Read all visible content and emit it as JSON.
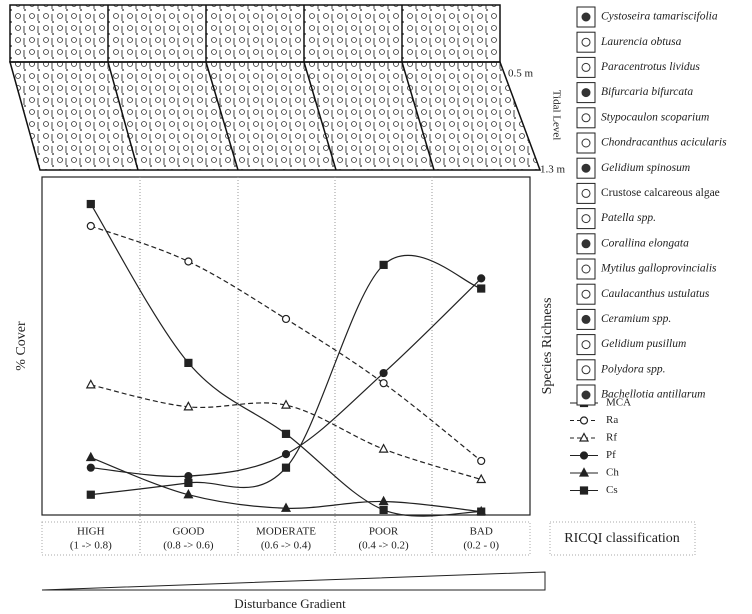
{
  "chart_data": {
    "type": "line",
    "categories": [
      "HIGH",
      "GOOD",
      "MODERATE",
      "POOR",
      "BAD"
    ],
    "category_ranges": [
      "(1 -> 0.8)",
      "(0.8 -> 0.6)",
      "(0.6 -> 0.4)",
      "(0.4 -> 0.2)",
      "(0.2 - 0)"
    ],
    "ylim": [
      0,
      100
    ],
    "y_label": "% Cover",
    "y2_label": "Species Richness",
    "x_label": "Disturbance Gradient",
    "classification_label": "RICQI classification",
    "tidal_label": "Tidal Level",
    "tidal_marks": [
      "0.5 m",
      "1.3 m"
    ],
    "series": [
      {
        "name": "MCA",
        "color": "#222",
        "marker": "square",
        "dashed": false,
        "values": [
          92,
          45,
          24,
          1.5,
          1
        ]
      },
      {
        "name": "Ra",
        "color": "#222",
        "marker": "open-circle",
        "dashed": true,
        "values": [
          85.5,
          75,
          58,
          39,
          16
        ]
      },
      {
        "name": "Rf",
        "color": "#222",
        "marker": "open-triangle",
        "dashed": true,
        "values": [
          38.5,
          32,
          32.5,
          19.5,
          10.5
        ]
      },
      {
        "name": "Pf",
        "color": "#222",
        "marker": "circle",
        "dashed": false,
        "values": [
          14,
          11.5,
          18,
          42,
          70
        ]
      },
      {
        "name": "Ch",
        "color": "#222",
        "marker": "triangle",
        "dashed": false,
        "values": [
          17,
          6,
          2,
          4,
          1
        ]
      },
      {
        "name": "Cs",
        "color": "#222",
        "marker": "square",
        "dashed": false,
        "values": [
          6,
          9.5,
          14,
          74,
          67
        ]
      }
    ],
    "species": [
      "Cystoseira tamariscifolia",
      "Laurencia obtusa",
      "Paracentrotus lividus",
      "Bifurcaria bifurcata",
      "Stypocaulon scoparium",
      "Chondracanthus acicularis",
      "Gelidium spinosum",
      "Crustose calcareous algae",
      "Patella spp.",
      "Corallina elongata",
      "Mytilus galloprovincialis",
      "Caulacanthus ustulatus",
      "Ceramium spp.",
      "Gelidium pusillum",
      "Polydora spp.",
      "Bachellotia antillarum"
    ]
  }
}
